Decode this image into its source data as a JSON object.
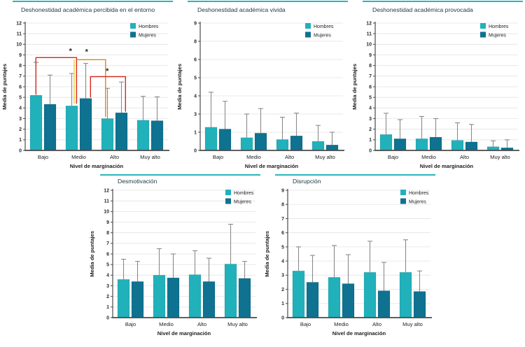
{
  "figure": {
    "background": "#ffffff"
  },
  "colors": {
    "hombres": "#21b1bb",
    "mujeres": "#0e7290",
    "error": "#8a8a8a",
    "grid": "#e3e3e3",
    "axis": "#4a4a4a",
    "title_text": "#223a46",
    "top_rule": "#2ab5bd",
    "sig_red": "#d7281d",
    "sig_orange": "#e8830c",
    "sig_yellow": "#f0d02b"
  },
  "legend": {
    "items": [
      {
        "label": "Hombres",
        "color_key": "hombres"
      },
      {
        "label": "Mujeres",
        "color_key": "mujeres"
      }
    ]
  },
  "chart_data": [
    {
      "id": "percibida",
      "type": "bar",
      "title": "Deshonestidad académica percibida en el entorno",
      "xlabel": "Nivel de marginación",
      "ylabel": "Media de puntajes",
      "categories": [
        "Bajo",
        "Medio",
        "Alto",
        "Muy alto"
      ],
      "ylim": [
        0,
        12
      ],
      "yticks": [
        0,
        1,
        2,
        3,
        4,
        5,
        6,
        7,
        8,
        9,
        10,
        11,
        12
      ],
      "grid": true,
      "legend_position": "top-right",
      "series": [
        {
          "name": "Hombres",
          "color_key": "hombres",
          "values": [
            5.2,
            4.2,
            3.0,
            2.85
          ],
          "err_top": [
            8.3,
            7.25,
            5.85,
            5.1
          ]
        },
        {
          "name": "Mujeres",
          "color_key": "mujeres",
          "values": [
            4.35,
            4.9,
            3.55,
            2.8
          ],
          "err_top": [
            7.1,
            8.2,
            6.45,
            5.05
          ]
        }
      ],
      "significance": {
        "lines": [
          {
            "color_key": "sig_red",
            "pts": [
              [
                -0.2,
                5.3
              ],
              [
                -0.2,
                8.75
              ],
              [
                0.94,
                8.75
              ],
              [
                0.94,
                4.4
              ]
            ]
          },
          {
            "color_key": "sig_yellow",
            "pts": [
              [
                0.87,
                8.55
              ],
              [
                0.87,
                4.4
              ]
            ]
          },
          {
            "color_key": "sig_orange",
            "pts": [
              [
                0.94,
                8.55
              ],
              [
                1.75,
                8.55
              ],
              [
                1.75,
                3.15
              ]
            ]
          },
          {
            "color_key": "sig_red",
            "pts": [
              [
                1.33,
                5.0
              ],
              [
                1.33,
                6.95
              ],
              [
                2.31,
                6.95
              ],
              [
                2.31,
                3.65
              ]
            ]
          }
        ],
        "stars": [
          {
            "color_key": "sig_red",
            "c": 0.77,
            "v": 9.35,
            "glyph": "*"
          },
          {
            "color_key": "sig_yellow",
            "c": 1.22,
            "v": 9.3,
            "glyph": "*"
          },
          {
            "color_key": "sig_red",
            "c": 1.8,
            "v": 7.5,
            "glyph": "*"
          }
        ]
      }
    },
    {
      "id": "vivida",
      "type": "bar",
      "title": "Deshonestidad académica vivida",
      "xlabel": "Nivel de marginación",
      "ylabel": "Media de puntajes",
      "categories": [
        "Bajo",
        "Medio",
        "Alto",
        "Muy alto"
      ],
      "ylim": [
        0,
        9
      ],
      "yticks": [
        0,
        1,
        3,
        4,
        5,
        6,
        8,
        9
      ],
      "grid": true,
      "legend_position": "top-right",
      "series": [
        {
          "name": "Hombres",
          "color_key": "hombres",
          "values": [
            1.55,
            0.7,
            0.6,
            0.5
          ],
          "err_top": [
            4.2,
            3.0,
            2.65,
            1.75
          ]
        },
        {
          "name": "Mujeres",
          "color_key": "mujeres",
          "values": [
            1.35,
            0.95,
            0.8,
            0.3
          ],
          "err_top": [
            3.7,
            3.3,
            3.05,
            1.0
          ]
        }
      ]
    },
    {
      "id": "provocada",
      "type": "bar",
      "title": "Deshonestidad académica provocada",
      "xlabel": "Nivel de marginación",
      "ylabel": "Media de puntajes",
      "categories": [
        "Bajo",
        "Medio",
        "Alto",
        "Muy alto"
      ],
      "ylim": [
        0,
        12
      ],
      "yticks": [
        0,
        1,
        2,
        3,
        4,
        5,
        6,
        7,
        8,
        9,
        10,
        11,
        12
      ],
      "grid": true,
      "legend_position": "top-right",
      "series": [
        {
          "name": "Hombres",
          "color_key": "hombres",
          "values": [
            1.5,
            1.1,
            0.95,
            0.35
          ],
          "err_top": [
            3.5,
            3.2,
            2.6,
            0.9
          ]
        },
        {
          "name": "Mujeres",
          "color_key": "mujeres",
          "values": [
            1.1,
            1.25,
            0.8,
            0.25
          ],
          "err_top": [
            2.9,
            3.0,
            2.45,
            1.0
          ]
        }
      ]
    },
    {
      "id": "desmotivacion",
      "type": "bar",
      "title": "Desmotivación",
      "xlabel": "Nivel de marginación",
      "ylabel": "Media de puntajes",
      "categories": [
        "Bajo",
        "Medio",
        "Alto",
        "Muy alto"
      ],
      "ylim": [
        0,
        12
      ],
      "yticks": [
        0,
        1,
        2,
        3,
        4,
        5,
        6,
        7,
        8,
        9,
        10,
        11,
        12
      ],
      "grid": true,
      "legend_position": "top-right",
      "series": [
        {
          "name": "Hombres",
          "color_key": "hombres",
          "values": [
            3.6,
            4.0,
            4.05,
            5.05
          ],
          "err_top": [
            5.5,
            6.5,
            6.3,
            8.8
          ]
        },
        {
          "name": "Mujeres",
          "color_key": "mujeres",
          "values": [
            3.4,
            3.75,
            3.4,
            3.7
          ],
          "err_top": [
            5.3,
            6.0,
            5.6,
            5.3
          ]
        }
      ]
    },
    {
      "id": "disrupcion",
      "type": "bar",
      "title": "Disrupción",
      "xlabel": "Nivel de marginación",
      "ylabel": "Media de puntajes",
      "categories": [
        "Bajo",
        "Medio",
        "Alto",
        "Muy alto"
      ],
      "ylim": [
        0,
        9
      ],
      "yticks": [
        0,
        1,
        2,
        3,
        4,
        5,
        6,
        7,
        8,
        9
      ],
      "grid": true,
      "legend_position": "top-right",
      "series": [
        {
          "name": "Hombres",
          "color_key": "hombres",
          "values": [
            3.3,
            2.85,
            3.2,
            3.2
          ],
          "err_top": [
            5.0,
            5.1,
            5.4,
            5.5
          ]
        },
        {
          "name": "Mujeres",
          "color_key": "mujeres",
          "values": [
            2.5,
            2.4,
            1.9,
            1.85
          ],
          "err_top": [
            4.4,
            4.45,
            3.9,
            3.3
          ]
        }
      ]
    }
  ]
}
